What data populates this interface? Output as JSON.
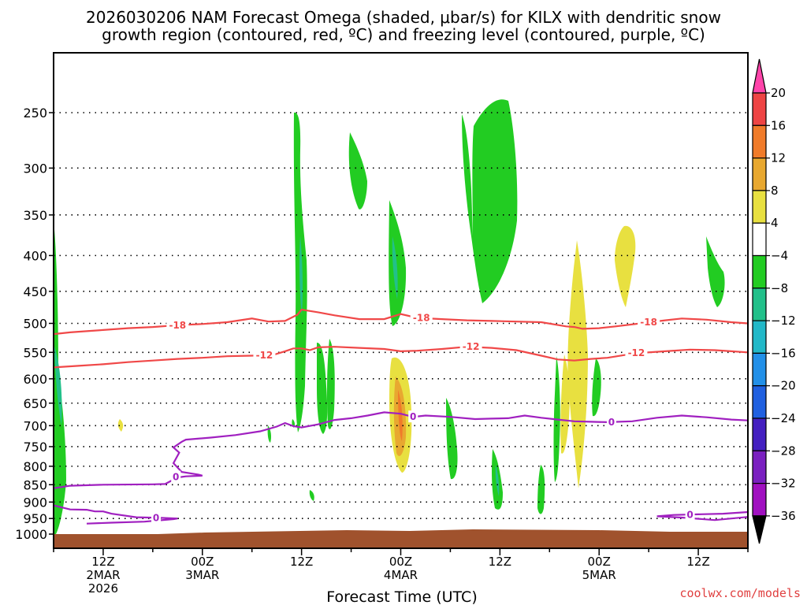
{
  "chart_data": {
    "type": "time-height cross section",
    "title_line1": "2026030206 NAM Forecast Omega (shaded, μbar/s) for KILX with dendritic snow",
    "title_line2": "growth region (contoured, red, ºC) and freezing level (contoured, purple, ºC)",
    "xlabel": "Forecast Time (UTC)",
    "credit": "coolwx.com/models",
    "x_hours_range": [
      6,
      90
    ],
    "y_pressure_range": [
      1000,
      200
    ],
    "y_ticks": [
      250,
      300,
      350,
      400,
      450,
      500,
      550,
      600,
      650,
      700,
      750,
      800,
      850,
      900,
      950,
      1000
    ],
    "x_ticks": [
      {
        "hour": 12,
        "lines": [
          "12Z",
          "2MAR",
          "2026"
        ]
      },
      {
        "hour": 24,
        "lines": [
          "00Z",
          "3MAR"
        ]
      },
      {
        "hour": 36,
        "lines": [
          "12Z"
        ]
      },
      {
        "hour": 48,
        "lines": [
          "00Z",
          "4MAR"
        ]
      },
      {
        "hour": 60,
        "lines": [
          "12Z"
        ]
      },
      {
        "hour": 72,
        "lines": [
          "00Z",
          "5MAR"
        ]
      },
      {
        "hour": 84,
        "lines": [
          "12Z"
        ]
      }
    ],
    "colorbar": {
      "labels": [
        "20",
        "16",
        "12",
        "8",
        "4",
        "−4",
        "−8",
        "−12",
        "−16",
        "−20",
        "−24",
        "−28",
        "−32",
        "−36"
      ],
      "colors": [
        "#ff44aa",
        "#ee4444",
        "#f07b2a",
        "#e8a830",
        "#e8e040",
        "#ffffff",
        "#22cc22",
        "#22c08a",
        "#22b8c8",
        "#2290e8",
        "#2060e0",
        "#4420c0",
        "#7a20c0",
        "#a010c0",
        "#aaaaaa",
        "#000000"
      ]
    },
    "contours": [
      {
        "name": "-18",
        "color": "#f04848",
        "points": [
          [
            6,
            518
          ],
          [
            8,
            515
          ],
          [
            10,
            513
          ],
          [
            12,
            511
          ],
          [
            15,
            508
          ],
          [
            18,
            506
          ],
          [
            21,
            503
          ],
          [
            24,
            501
          ],
          [
            27,
            498
          ],
          [
            30,
            492
          ],
          [
            32,
            497
          ],
          [
            34,
            496
          ],
          [
            35.5,
            486
          ],
          [
            36,
            478
          ],
          [
            38,
            482
          ],
          [
            40,
            487
          ],
          [
            43,
            493
          ],
          [
            46,
            493
          ],
          [
            48,
            485
          ],
          [
            50,
            491
          ],
          [
            53,
            493
          ],
          [
            56,
            495
          ],
          [
            59,
            496
          ],
          [
            62,
            497
          ],
          [
            65,
            498
          ],
          [
            68,
            505
          ],
          [
            69,
            506
          ],
          [
            70,
            509
          ],
          [
            72,
            508
          ],
          [
            74,
            505
          ],
          [
            77,
            500
          ],
          [
            80,
            495
          ],
          [
            82,
            492
          ],
          [
            85,
            494
          ],
          [
            88,
            498
          ],
          [
            90,
            500
          ]
        ],
        "labels": [
          {
            "x": 21,
            "y": 503,
            "text": "-18"
          },
          {
            "x": 50.5,
            "y": 491,
            "text": "-18"
          },
          {
            "x": 78,
            "y": 498,
            "text": "-18"
          }
        ]
      },
      {
        "name": "-12",
        "color": "#f04848",
        "points": [
          [
            6,
            578
          ],
          [
            9,
            575
          ],
          [
            12,
            572
          ],
          [
            15,
            568
          ],
          [
            18,
            565
          ],
          [
            21,
            562
          ],
          [
            24,
            560
          ],
          [
            27,
            557
          ],
          [
            30,
            556
          ],
          [
            32.5,
            555
          ],
          [
            34,
            548
          ],
          [
            35,
            543
          ],
          [
            36,
            543
          ],
          [
            37,
            546
          ],
          [
            38,
            541
          ],
          [
            40,
            540
          ],
          [
            43,
            542
          ],
          [
            46,
            544
          ],
          [
            48,
            548
          ],
          [
            50,
            547
          ],
          [
            53,
            544
          ],
          [
            56,
            540
          ],
          [
            59,
            542
          ],
          [
            62,
            546
          ],
          [
            65,
            556
          ],
          [
            67,
            563
          ],
          [
            69,
            565
          ],
          [
            71,
            562
          ],
          [
            73,
            560
          ],
          [
            75,
            555
          ],
          [
            77,
            551
          ],
          [
            80,
            548
          ],
          [
            83,
            545
          ],
          [
            86,
            546
          ],
          [
            88,
            548
          ],
          [
            90,
            550
          ]
        ],
        "labels": [
          {
            "x": 31.5,
            "y": 555,
            "text": "-12"
          },
          {
            "x": 56.5,
            "y": 540,
            "text": "-12"
          },
          {
            "x": 76.5,
            "y": 551,
            "text": "-12"
          }
        ]
      },
      {
        "name": "0 main",
        "color": "#a020c0",
        "points": [
          [
            6,
            860
          ],
          [
            8,
            853
          ],
          [
            12,
            850
          ],
          [
            18,
            849
          ],
          [
            19.5,
            848
          ],
          [
            21,
            830
          ],
          [
            22,
            827
          ],
          [
            24,
            825
          ],
          [
            23.5,
            822
          ],
          [
            21.5,
            815
          ],
          [
            20.5,
            792
          ],
          [
            21.2,
            765
          ],
          [
            20.5,
            752
          ],
          [
            21.5,
            738
          ],
          [
            22,
            733
          ],
          [
            25,
            728
          ],
          [
            28,
            722
          ],
          [
            31,
            713
          ],
          [
            33,
            702
          ],
          [
            34,
            694
          ],
          [
            35,
            701
          ],
          [
            36,
            704
          ],
          [
            38,
            697
          ],
          [
            40,
            687
          ],
          [
            42,
            683
          ],
          [
            44,
            677
          ],
          [
            46,
            670
          ],
          [
            48,
            673
          ],
          [
            49.5,
            680
          ],
          [
            51,
            677
          ],
          [
            54,
            680
          ],
          [
            57,
            685
          ],
          [
            59,
            684
          ],
          [
            61,
            683
          ],
          [
            63,
            677
          ],
          [
            65,
            682
          ],
          [
            67,
            686
          ],
          [
            69,
            690
          ],
          [
            71,
            691
          ],
          [
            73,
            692
          ],
          [
            76,
            690
          ],
          [
            79,
            682
          ],
          [
            82,
            677
          ],
          [
            85,
            681
          ],
          [
            88,
            686
          ],
          [
            90,
            688
          ]
        ],
        "labels": [
          {
            "x": 20.8,
            "y": 829,
            "text": "0"
          },
          {
            "x": 49.5,
            "y": 680,
            "text": "0"
          },
          {
            "x": 73.5,
            "y": 692,
            "text": "0"
          }
        ]
      },
      {
        "name": "0 lower",
        "color": "#a020c0",
        "points": [
          [
            6,
            910
          ],
          [
            8,
            922
          ],
          [
            10,
            923
          ],
          [
            11,
            928
          ],
          [
            12,
            928
          ],
          [
            13,
            935
          ],
          [
            16,
            946
          ],
          [
            19,
            948
          ],
          [
            21,
            950
          ],
          [
            20.5,
            952
          ],
          [
            17,
            960
          ],
          [
            13,
            963
          ],
          [
            10,
            966
          ]
        ],
        "labels": [
          {
            "x": 18.4,
            "y": 948,
            "text": "0"
          }
        ]
      },
      {
        "name": "0 right",
        "color": "#a020c0",
        "points": [
          [
            90,
            930
          ],
          [
            87,
            935
          ],
          [
            84,
            937
          ],
          [
            81,
            939
          ],
          [
            79,
            943
          ],
          [
            82,
            947
          ],
          [
            86,
            955
          ],
          [
            90,
            945
          ]
        ],
        "labels": [
          {
            "x": 83,
            "y": 939,
            "text": "0"
          }
        ]
      }
    ]
  }
}
